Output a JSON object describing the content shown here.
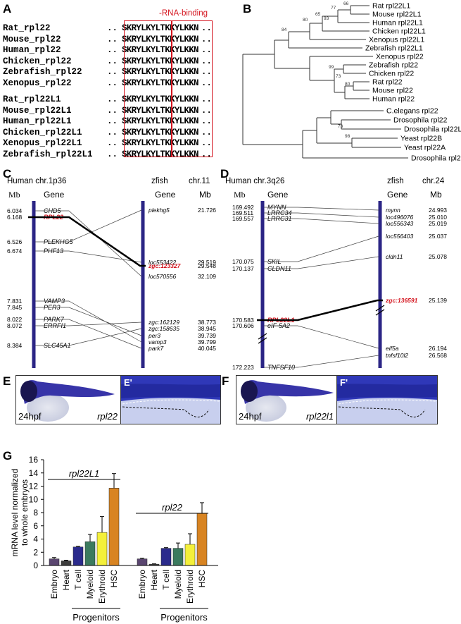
{
  "panels": {
    "A": "A",
    "B": "B",
    "C": "C",
    "D": "D",
    "E": "E",
    "F": "F",
    "G": "G"
  },
  "panelA": {
    "header": "-RNA-binding",
    "rows": [
      {
        "name": "Rat_rpl22",
        "seq": "SKRYLKYLTKKYLKKN"
      },
      {
        "name": "Mouse_rpl22",
        "seq": "SKRYLKYLTKKYLKKN"
      },
      {
        "name": "Human_rpl22",
        "seq": "SKRYLKYLTKKYLKKN"
      },
      {
        "name": "Chicken_rpl22",
        "seq": "SKRYLKYLTKKYLKKN"
      },
      {
        "name": "Zebrafish_rpl22",
        "seq": "SKRYLKYLTKKYLKKN"
      },
      {
        "name": "Xenopus_rpl22",
        "seq": "SKRYLKYLTKKYLKKN"
      },
      {
        "name": "Rat_rpl22L1",
        "seq": "SKRYLKYLTKKYLKKN"
      },
      {
        "name": "Mouse_rpl22L1",
        "seq": "SKRYLKYLTKKYLKKN"
      },
      {
        "name": "Human_rpl22L1",
        "seq": "SKRYLKYLTKKYLKKN"
      },
      {
        "name": "Chicken_rpl22L1",
        "seq": "SKRYLKYLTKKYLKKN"
      },
      {
        "name": "Xenopus_rpl22L1",
        "seq": "SKRYLKYLTKKYLKKN"
      },
      {
        "name": "Zebrafish_rpl22L1",
        "seq": "SKRYLKYLTKKYLKKN"
      }
    ],
    "dots": ".."
  },
  "panelB": {
    "leaves": [
      "Rat rpl22L1",
      "Mouse rpl22L1",
      "Human rpl22L1",
      "Chicken rpl22L1",
      "Xenopus rpl22L1",
      "Zebrafish rpl22L1",
      "Xenopus rpl22",
      "Zebrafish rpl22",
      "Chicken rpl22",
      "Rat rpl22",
      "Mouse rpl22",
      "Human rpl22",
      "C.elegans rpl22",
      "Drosophila rpl22",
      "Drosophila rpl22L-A",
      "Yeast rpl22B",
      "Yeast rpl22A",
      "Drosophila rpl22L-B"
    ],
    "bootstraps": [
      "66",
      "77",
      "93",
      "65",
      "80",
      "84",
      "99",
      "73",
      "80",
      "73",
      "98"
    ]
  },
  "panelC": {
    "human_title": "Human chr.1p36",
    "mb": "Mb",
    "gene": "Gene",
    "zf_title": "zfish",
    "zf_chr": "chr.11",
    "zf_gene": "Gene",
    "zf_mb": "Mb",
    "human_genes": [
      {
        "mb": "6.034",
        "gene": "CHD5"
      },
      {
        "mb": "6.168",
        "gene": "RPL22"
      },
      {
        "mb": "6.526",
        "gene": "PLEKHG5"
      },
      {
        "mb": "6.674",
        "gene": "PHF13"
      },
      {
        "mb": "7.831",
        "gene": "VAMP3"
      },
      {
        "mb": "7.845",
        "gene": "PER3"
      },
      {
        "mb": "8.022",
        "gene": "PARK7"
      },
      {
        "mb": "8.072",
        "gene": "ERRFI1"
      },
      {
        "mb": "8.384",
        "gene": "SLC45A1"
      }
    ],
    "zf_genes": [
      {
        "gene": "plekhg5",
        "mb": "21.726"
      },
      {
        "gene": "loc553422",
        "mb": "29.519"
      },
      {
        "gene": "zgc:123327",
        "mb": "29.548"
      },
      {
        "gene": "loc570556",
        "mb": "32.109"
      },
      {
        "gene": "zgc:162129",
        "mb": "38.773"
      },
      {
        "gene": "zgc:158635",
        "mb": "38.945"
      },
      {
        "gene": "per3",
        "mb": "39.739"
      },
      {
        "gene": "vamp3",
        "mb": "39.799"
      },
      {
        "gene": "park7",
        "mb": "40.045"
      }
    ]
  },
  "panelD": {
    "human_title": "Human chr.3q26",
    "mb": "Mb",
    "gene": "Gene",
    "zf_title": "zfish",
    "zf_chr": "chr.24",
    "zf_gene": "Gene",
    "zf_mb": "Mb",
    "human_genes": [
      {
        "mb": "169.492",
        "gene": "MYNN"
      },
      {
        "mb": "169.511",
        "gene": "LRRC34"
      },
      {
        "mb": "169.557",
        "gene": "LRRC31"
      },
      {
        "mb": "170.075",
        "gene": "SKIL"
      },
      {
        "mb": "170.137",
        "gene": "CLDN11"
      },
      {
        "mb": "170.583",
        "gene": "RPL22L1"
      },
      {
        "mb": "170.606",
        "gene": "eIF-5A2"
      },
      {
        "mb": "172.223",
        "gene": "TNFSF10"
      }
    ],
    "zf_genes": [
      {
        "gene": "mynn",
        "mb": "24.993"
      },
      {
        "gene": "loc496076",
        "mb": "25.010"
      },
      {
        "gene": "loc556343",
        "mb": "25.019"
      },
      {
        "gene": "loc556403",
        "mb": "25.037"
      },
      {
        "gene": "cldn11",
        "mb": "25.078"
      },
      {
        "gene": "zgc:136591",
        "mb": "25.139"
      },
      {
        "gene": "eif5a",
        "mb": "26.194"
      },
      {
        "gene": "tnfsf10l2",
        "mb": "26.568"
      }
    ]
  },
  "panelE": {
    "stage": "24hpf",
    "gene": "rpl22",
    "inset": "E'"
  },
  "panelF": {
    "stage": "24hpf",
    "gene": "rpl22l1",
    "inset": "F'"
  },
  "colors": {
    "chromosome": "#2b2585",
    "highlight": "#d4141e",
    "box": "#d4141e"
  },
  "chart_data": {
    "type": "bar",
    "ylabel": "mRNA level normalized to whole embryos",
    "ylim": [
      0,
      16
    ],
    "yticks": [
      "0",
      "2",
      "4",
      "6",
      "8",
      "10",
      "12",
      "14",
      "16"
    ],
    "groups": [
      {
        "name": "rpl22L1",
        "categories": [
          "Embryo",
          "Heart",
          "T cell",
          "Myeloid",
          "Erythroid",
          "HSC"
        ],
        "values": [
          1.0,
          0.7,
          2.8,
          3.6,
          5.0,
          11.7
        ],
        "errors": [
          0.2,
          0.1,
          0.1,
          1.1,
          2.4,
          2.2
        ]
      },
      {
        "name": "rpl22",
        "categories": [
          "Embryo",
          "Heart",
          "T cell",
          "Myeloid",
          "Erythroid",
          "HSC"
        ],
        "values": [
          1.0,
          0.2,
          2.6,
          2.6,
          3.2,
          7.9
        ],
        "errors": [
          0.1,
          0.05,
          0.1,
          0.8,
          1.6,
          1.6
        ]
      }
    ],
    "bar_colors": [
      "#5a4670",
      "#3d3d3d",
      "#2b2b8c",
      "#3b7a5e",
      "#f4f03a",
      "#d88422"
    ],
    "progenitors_label": "Progenitors"
  }
}
